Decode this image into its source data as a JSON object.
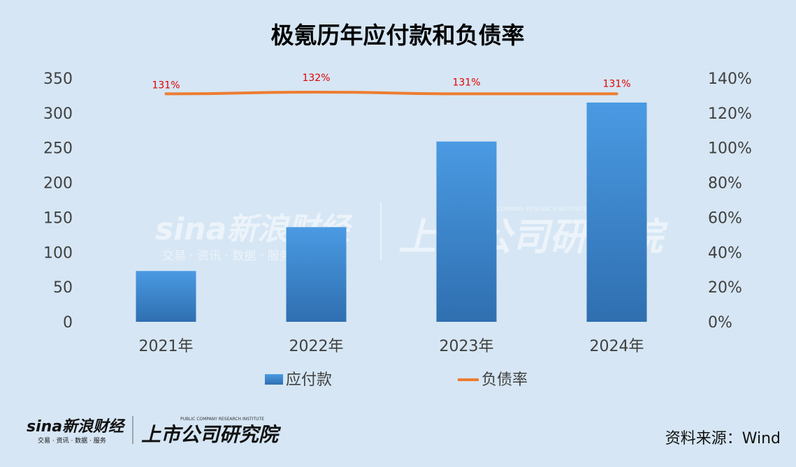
{
  "chart_data": {
    "type": "bar",
    "title": "极氪历年应付款和负债率",
    "categories": [
      "2021年",
      "2022年",
      "2023年",
      "2024年"
    ],
    "series": [
      {
        "name": "应付款",
        "type": "bar",
        "axis": "left",
        "values": [
          73,
          136,
          259,
          315
        ],
        "color": "#3a86d0"
      },
      {
        "name": "负债率",
        "type": "line",
        "axis": "right",
        "values": [
          131,
          132,
          131,
          131
        ],
        "labels": [
          "131%",
          "132%",
          "131%",
          "131%"
        ],
        "color": "#ed7d31"
      }
    ],
    "y_left": {
      "min": 0,
      "max": 350,
      "ticks": [
        "0",
        "50",
        "100",
        "150",
        "200",
        "250",
        "300",
        "350"
      ]
    },
    "y_right": {
      "min": 0,
      "max": 140,
      "ticks": [
        "0%",
        "20%",
        "40%",
        "60%",
        "80%",
        "100%",
        "120%",
        "140%"
      ]
    },
    "legend": {
      "position": "bottom"
    },
    "grid": false
  },
  "watermark": {
    "brand": "sina新浪财经",
    "tagline": "交易 · 资讯 · 数据 · 服务",
    "institute": "上市公司研究院",
    "institute_en": "PUBLIC COMPANY RESEARCH INSTITUTE"
  },
  "footer": {
    "source": "资料来源：Wind"
  },
  "colors": {
    "background": "#d6e6f4",
    "bar_top": "#4a9ae3",
    "bar_bottom": "#2f6fb0",
    "line": "#ed7d31",
    "data_label": "#e00000"
  }
}
